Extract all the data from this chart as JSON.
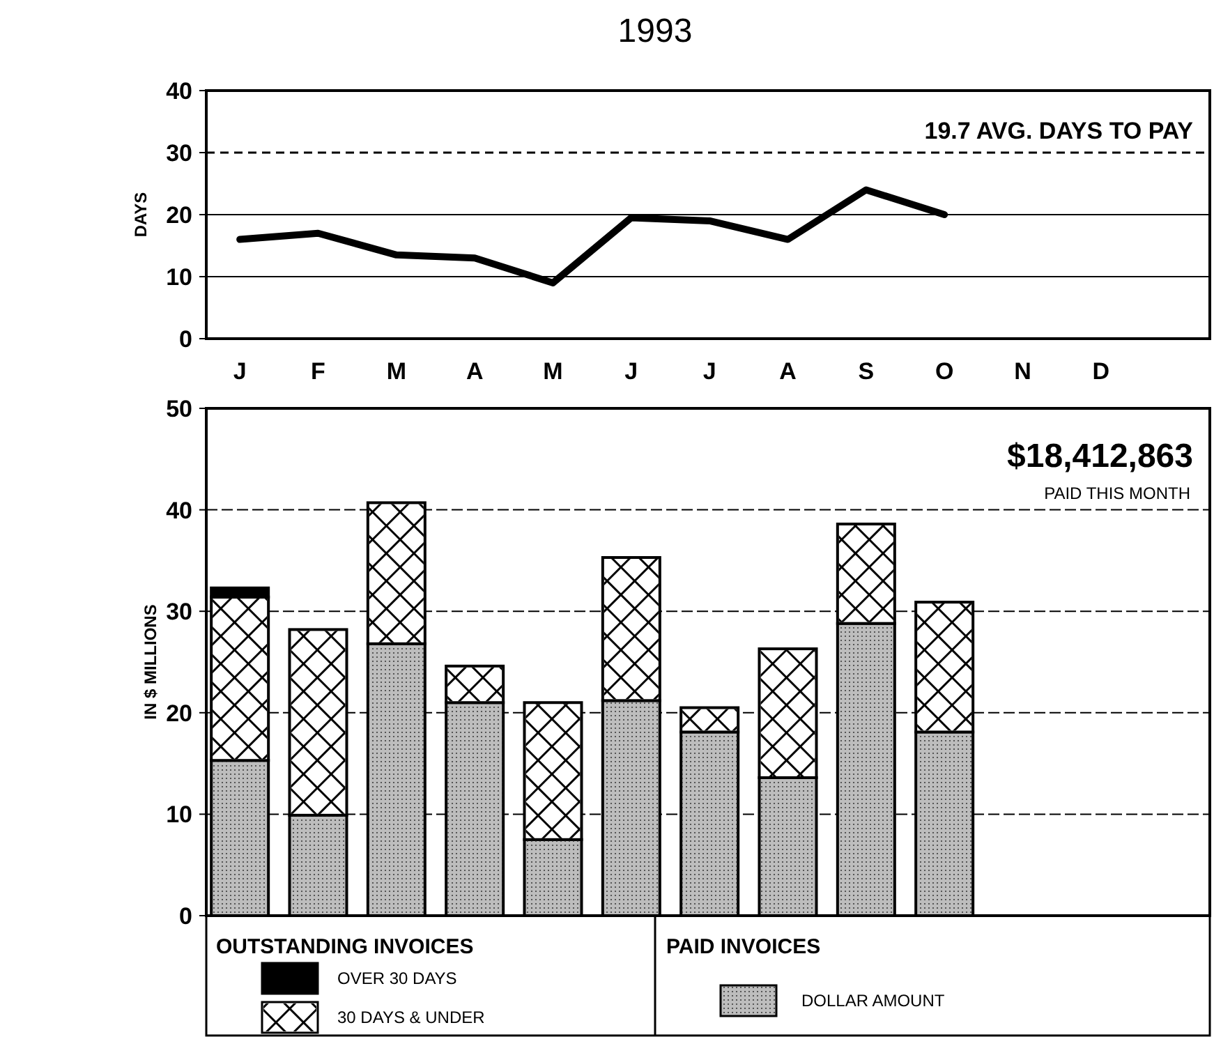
{
  "chart_data": [
    {
      "type": "line",
      "title": "1993",
      "ylabel": "DAYS",
      "categories": [
        "J",
        "F",
        "M",
        "A",
        "M",
        "J",
        "J",
        "A",
        "S",
        "O",
        "N",
        "D"
      ],
      "series": [
        {
          "color": "#000000",
          "values": [
            16,
            17,
            13.5,
            13,
            9,
            19.5,
            19,
            16,
            24,
            20,
            null,
            null
          ]
        }
      ],
      "ylim": [
        0,
        40
      ],
      "yticks": [
        0,
        10,
        20,
        30,
        40
      ],
      "grid": "y",
      "marker": "none",
      "line_style": "solid",
      "ref_lines": [
        {
          "axis": "y",
          "value": 30,
          "line_style": "dashed"
        }
      ],
      "annotations": [
        "19.7 AVG. DAYS TO PAY"
      ]
    },
    {
      "type": "bar",
      "stacked": true,
      "ylabel": "IN $ MILLIONS",
      "categories": [
        null,
        null,
        null,
        null,
        null,
        null,
        null,
        null,
        null,
        null,
        null,
        null
      ],
      "series": [
        {
          "name": "DOLLAR AMOUNT",
          "color": "#bdbdbd",
          "values": [
            15.3,
            9.9,
            26.8,
            21.0,
            7.5,
            21.2,
            18.1,
            13.6,
            28.8,
            18.1,
            null,
            null
          ]
        },
        {
          "name": "30 DAYS & UNDER",
          "color": "#ffffff",
          "values": [
            16.1,
            18.3,
            13.9,
            3.6,
            13.5,
            14.1,
            2.4,
            12.7,
            9.8,
            12.8,
            null,
            null
          ]
        },
        {
          "name": "OVER 30 DAYS",
          "color": "#000000",
          "values": [
            0.9,
            0,
            0,
            0,
            0,
            0,
            0,
            0,
            0,
            0,
            null,
            null
          ]
        }
      ],
      "ylim": [
        0,
        50
      ],
      "yticks": [
        0,
        10,
        20,
        30,
        40,
        50
      ],
      "grid": "y",
      "legend": "bottom",
      "annotations": [
        "$18,412,863",
        "PAID THIS MONTH",
        "OUTSTANDING INVOICES",
        "PAID INVOICES"
      ]
    }
  ]
}
